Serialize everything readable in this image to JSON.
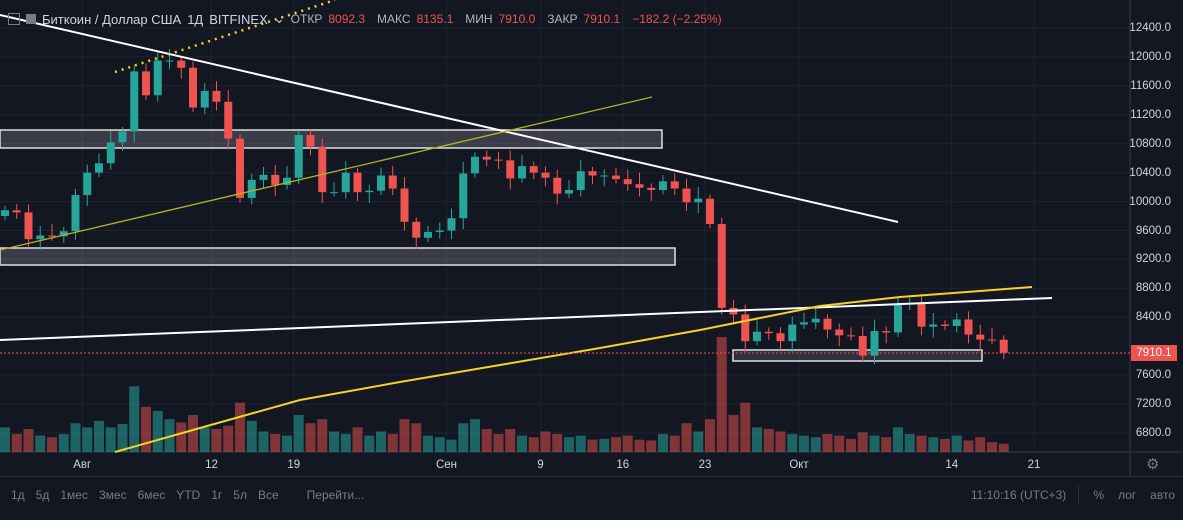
{
  "header": {
    "symbol": "Биткоин / Доллар США",
    "interval": "1Д",
    "exchange": "BITFINEX",
    "open_label": "ОТКР",
    "open": "8092.3",
    "high_label": "МАКС",
    "high": "8135.1",
    "low_label": "МИН",
    "low": "7910.0",
    "close_label": "ЗАКР",
    "close": "7910.1",
    "change": "−182.2 (−2.25%)"
  },
  "colors": {
    "up": "#26a69a",
    "down": "#ef5350",
    "background": "#131722",
    "ma": "#f5d327"
  },
  "price_axis": [
    "12400.0",
    "12000.0",
    "11600.0",
    "11200.0",
    "10800.0",
    "10400.0",
    "10000.0",
    "9600.0",
    "9200.0",
    "8800.0",
    "8400.0",
    "7600.0",
    "7200.0",
    "6800.0"
  ],
  "last_price": "7910.1",
  "time_axis": [
    {
      "label": "Авг",
      "day": 7
    },
    {
      "label": "12",
      "day": 18
    },
    {
      "label": "19",
      "day": 25
    },
    {
      "label": "Сен",
      "day": 38
    },
    {
      "label": "9",
      "day": 46
    },
    {
      "label": "16",
      "day": 53
    },
    {
      "label": "23",
      "day": 60
    },
    {
      "label": "Окт",
      "day": 68
    },
    {
      "label": "14",
      "day": 81
    },
    {
      "label": "21",
      "day": 88
    }
  ],
  "bottombar": {
    "ranges": [
      "1д",
      "5д",
      "1мес",
      "3мес",
      "6мес",
      "YTD",
      "1г",
      "5л",
      "Все"
    ],
    "goto": "Перейти...",
    "clock": "11:10:16 (UTC+3)",
    "percent": "%",
    "log": "лог",
    "auto": "авто"
  },
  "chart_data": {
    "type": "candlestick",
    "start_date": "Jul 25",
    "ylim": [
      6600,
      12600
    ],
    "closes": [
      9880,
      9850,
      9480,
      9530,
      9520,
      9590,
      10090,
      10400,
      10530,
      10820,
      10970,
      11800,
      11470,
      11950,
      11950,
      11850,
      11300,
      11530,
      11380,
      10870,
      10050,
      10300,
      10370,
      10230,
      10330,
      10920,
      10760,
      10130,
      10130,
      10400,
      10130,
      10150,
      10360,
      10180,
      9720,
      9500,
      9580,
      9600,
      9770,
      10390,
      10620,
      10580,
      10570,
      10320,
      10490,
      10400,
      10330,
      10110,
      10160,
      10420,
      10360,
      10360,
      10310,
      10240,
      10190,
      10160,
      10280,
      10180,
      9990,
      10040,
      9690,
      8530,
      8440,
      8070,
      8200,
      8180,
      8070,
      8300,
      8330,
      8380,
      8230,
      8150,
      8140,
      7870,
      8210,
      8190,
      8590,
      8590,
      8270,
      8300,
      8280,
      8370,
      8160,
      8092,
      8090,
      7910
    ],
    "first_open": 9800,
    "volumes": [
      30,
      22,
      28,
      20,
      18,
      22,
      35,
      30,
      38,
      30,
      34,
      80,
      55,
      50,
      40,
      36,
      45,
      30,
      28,
      32,
      60,
      38,
      25,
      22,
      20,
      45,
      35,
      40,
      25,
      22,
      30,
      20,
      25,
      22,
      40,
      35,
      20,
      18,
      15,
      35,
      40,
      28,
      22,
      28,
      20,
      18,
      25,
      22,
      18,
      20,
      15,
      16,
      18,
      20,
      15,
      14,
      22,
      20,
      35,
      25,
      40,
      140,
      45,
      60,
      30,
      28,
      25,
      22,
      20,
      18,
      22,
      20,
      16,
      24,
      20,
      18,
      30,
      22,
      20,
      18,
      16,
      20,
      14,
      18,
      12,
      10
    ]
  }
}
